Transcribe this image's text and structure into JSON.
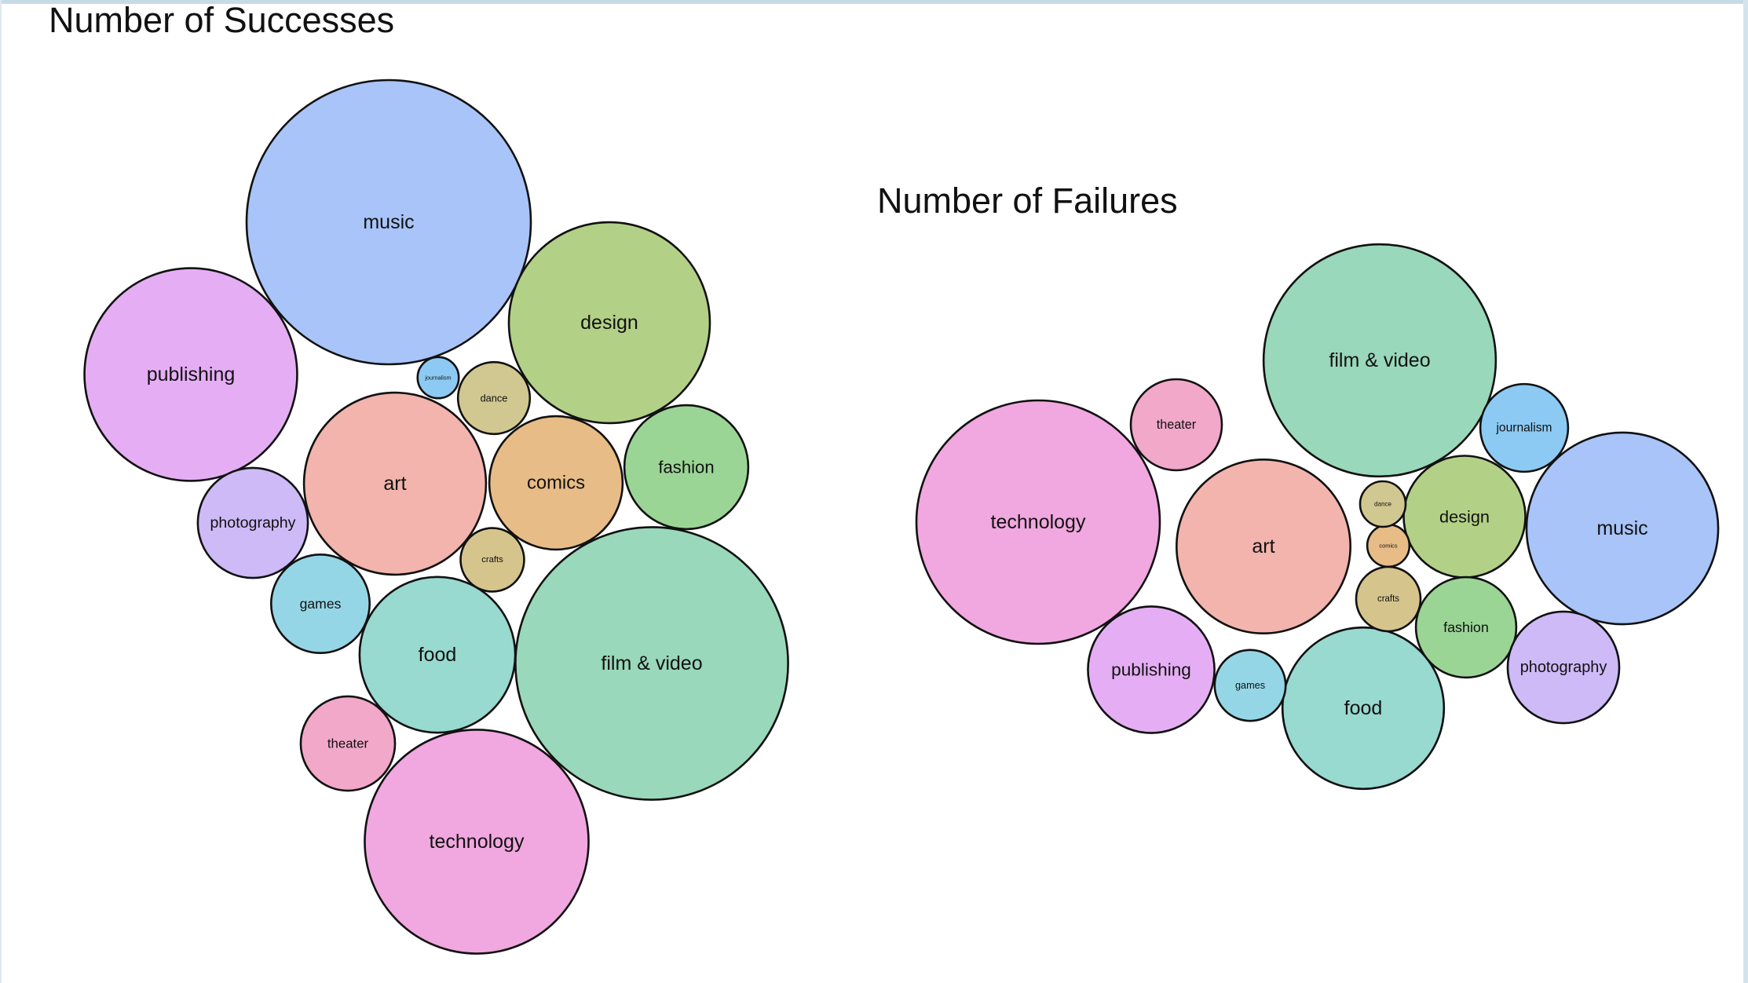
{
  "chart_data": [
    {
      "type": "bubble",
      "title": "Number of Successes",
      "series": [
        {
          "name": "music",
          "color": "#a8c4f8",
          "value": 1.0
        },
        {
          "name": "film & video",
          "color": "#99d8ba",
          "value": 0.92
        },
        {
          "name": "technology",
          "color": "#f1a7df",
          "value": 0.62
        },
        {
          "name": "design",
          "color": "#b3d087",
          "value": 0.5
        },
        {
          "name": "publishing",
          "color": "#e5aef4",
          "value": 0.56
        },
        {
          "name": "art",
          "color": "#f2b4ad",
          "value": 0.41
        },
        {
          "name": "food",
          "color": "#98d9d0",
          "value": 0.3
        },
        {
          "name": "comics",
          "color": "#e8bc86",
          "value": 0.22
        },
        {
          "name": "fashion",
          "color": "#9bd596",
          "value": 0.19
        },
        {
          "name": "photography",
          "color": "#cdbaf7",
          "value": 0.15
        },
        {
          "name": "games",
          "color": "#95d6e6",
          "value": 0.12
        },
        {
          "name": "theater",
          "color": "#f1a8c9",
          "value": 0.11
        },
        {
          "name": "dance",
          "color": "#d0c890",
          "value": 0.064
        },
        {
          "name": "crafts",
          "color": "#d5c58d",
          "value": 0.05
        },
        {
          "name": "journalism",
          "color": "#8ccaf3",
          "value": 0.021
        }
      ]
    },
    {
      "type": "bubble",
      "title": "Number of Failures",
      "series": [
        {
          "name": "technology",
          "color": "#f1a7df",
          "value": 1.0
        },
        {
          "name": "film & video",
          "color": "#99d8ba",
          "value": 0.91
        },
        {
          "name": "art",
          "color": "#f2b4ad",
          "value": 0.51
        },
        {
          "name": "music",
          "color": "#a8c4f8",
          "value": 0.62
        },
        {
          "name": "food",
          "color": "#98d9d0",
          "value": 0.44
        },
        {
          "name": "design",
          "color": "#b3d087",
          "value": 0.25
        },
        {
          "name": "publishing",
          "color": "#e5aef4",
          "value": 0.27
        },
        {
          "name": "fashion",
          "color": "#9bd596",
          "value": 0.17
        },
        {
          "name": "photography",
          "color": "#cdbaf7",
          "value": 0.21
        },
        {
          "name": "theater",
          "color": "#f1a8c9",
          "value": 0.14
        },
        {
          "name": "journalism",
          "color": "#8ccaf3",
          "value": 0.13
        },
        {
          "name": "games",
          "color": "#95d6e6",
          "value": 0.085
        },
        {
          "name": "crafts",
          "color": "#d5c58d",
          "value": 0.07
        },
        {
          "name": "comics",
          "color": "#e8bc86",
          "value": 0.03
        },
        {
          "name": "dance",
          "color": "#d0c890",
          "value": 0.035
        }
      ]
    }
  ]
}
